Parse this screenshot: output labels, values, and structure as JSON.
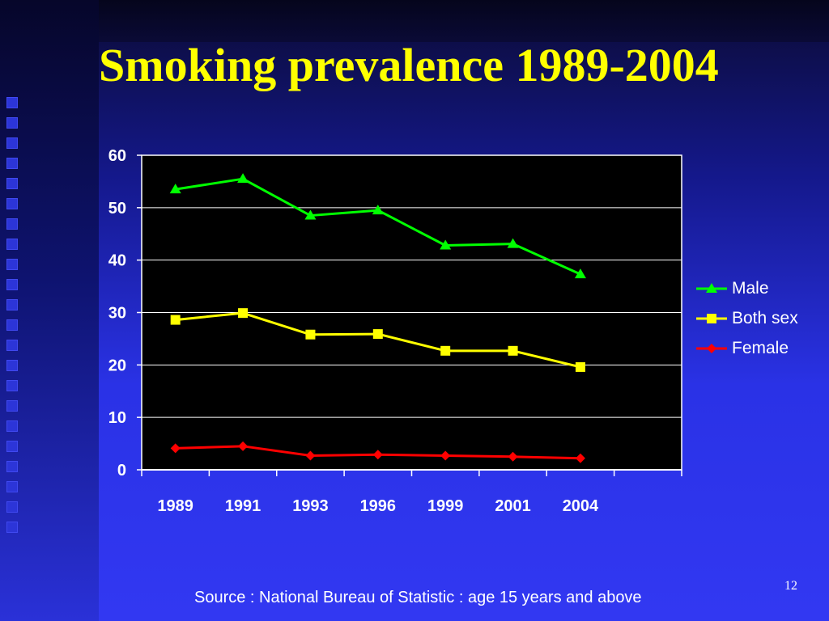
{
  "slide": {
    "title": "Smoking prevalence 1989-2004",
    "footnote": "Source : National Bureau of Statistic : age 15 years and above",
    "page_number": "12"
  },
  "colors": {
    "title": "#ffff00",
    "plot_background": "#000000",
    "male": "#00ff00",
    "both_sex": "#ffff00",
    "female": "#ff0000"
  },
  "chart_data": {
    "type": "line",
    "categories": [
      "1989",
      "1991",
      "1993",
      "1996",
      "1999",
      "2001",
      "2004"
    ],
    "ylim": [
      0,
      60
    ],
    "yticks": [
      0,
      10,
      20,
      30,
      40,
      50,
      60
    ],
    "grid": "horizontal",
    "legend_position": "right",
    "series": [
      {
        "name": "Male",
        "marker": "triangle",
        "color": "#00ff00",
        "values": [
          53.5,
          55.5,
          48.5,
          49.5,
          42.8,
          43.1,
          37.3
        ]
      },
      {
        "name": "Both sex",
        "marker": "square",
        "color": "#ffff00",
        "values": [
          28.6,
          29.9,
          25.8,
          25.9,
          22.7,
          22.7,
          19.6
        ]
      },
      {
        "name": "Female",
        "marker": "diamond",
        "color": "#ff0000",
        "values": [
          4.1,
          4.5,
          2.7,
          2.9,
          2.7,
          2.5,
          2.2
        ]
      }
    ]
  }
}
